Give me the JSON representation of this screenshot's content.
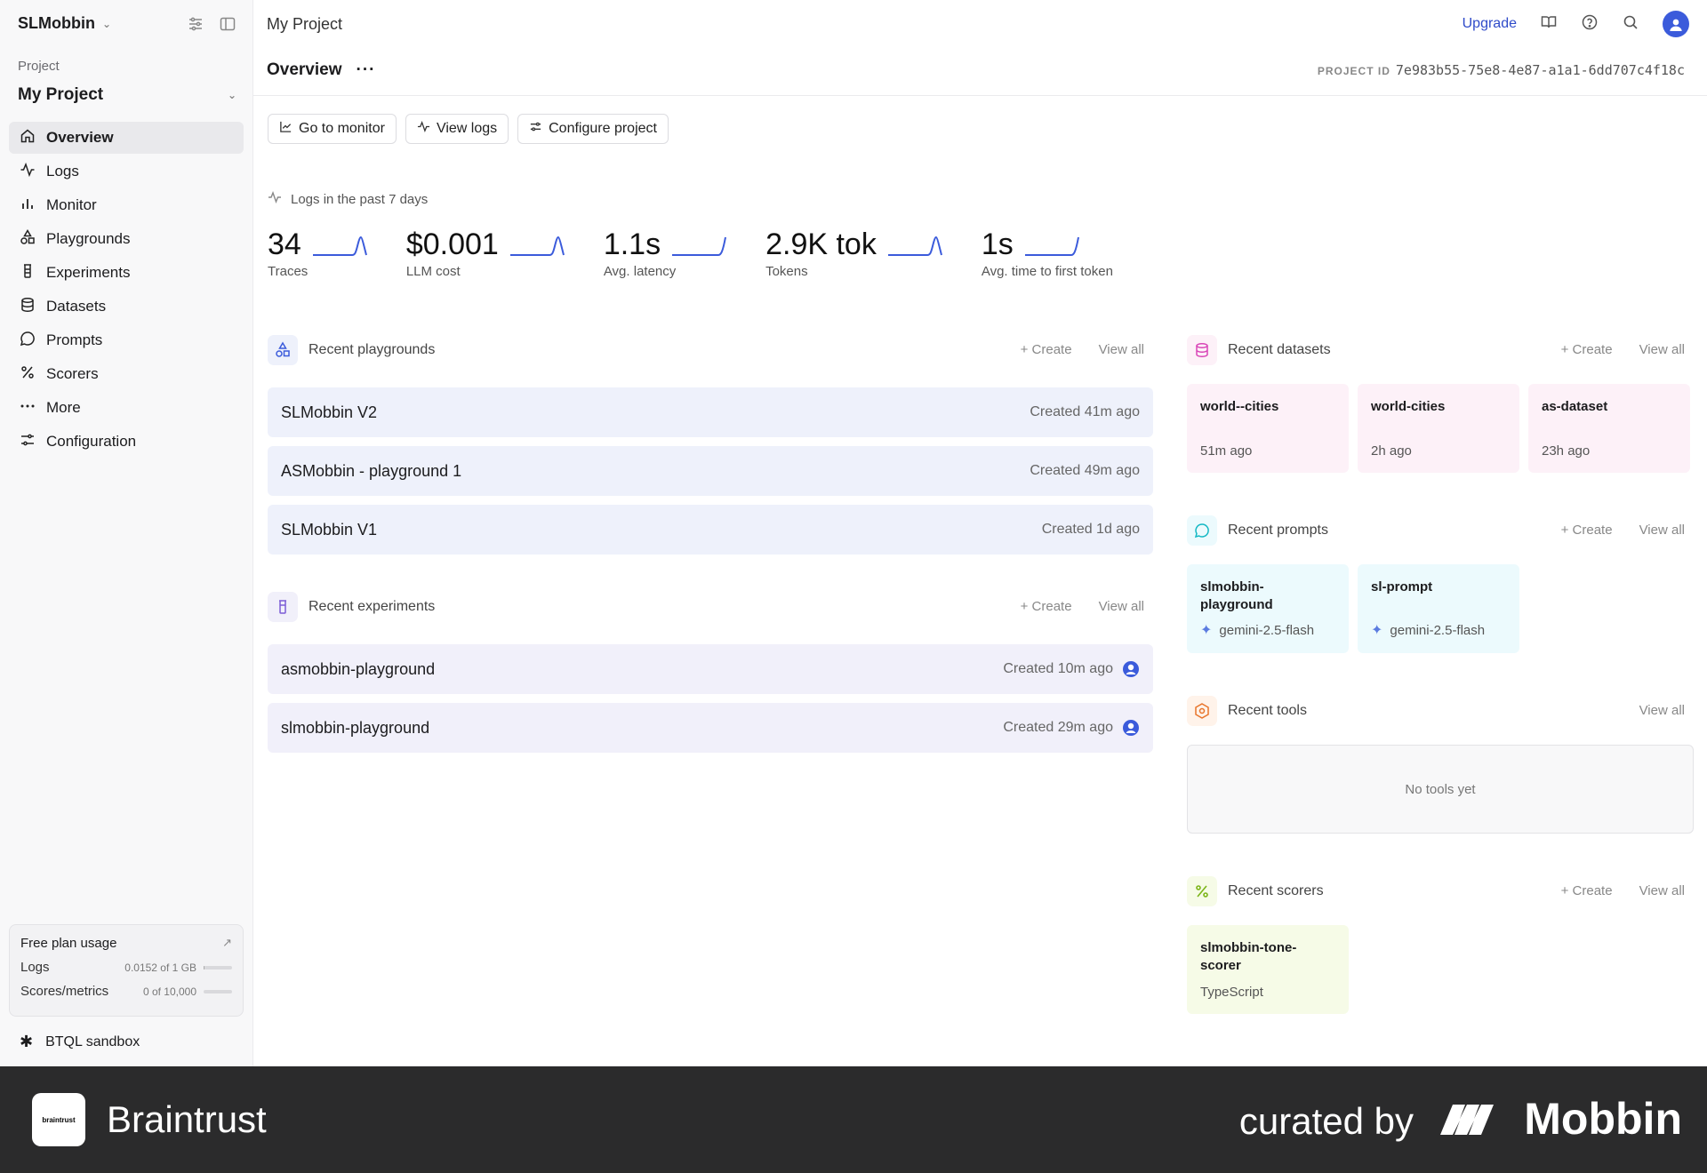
{
  "sidebar": {
    "org_name": "SLMobbin",
    "project_label": "Project",
    "project_name": "My Project",
    "nav": [
      {
        "label": "Overview",
        "icon": "home-icon",
        "active": true
      },
      {
        "label": "Logs",
        "icon": "activity-icon"
      },
      {
        "label": "Monitor",
        "icon": "bar-chart-icon"
      },
      {
        "label": "Playgrounds",
        "icon": "shapes-icon"
      },
      {
        "label": "Experiments",
        "icon": "beaker-icon"
      },
      {
        "label": "Datasets",
        "icon": "database-icon"
      },
      {
        "label": "Prompts",
        "icon": "message-icon"
      },
      {
        "label": "Scorers",
        "icon": "percent-icon"
      },
      {
        "label": "More",
        "icon": "ellipsis-icon"
      },
      {
        "label": "Configuration",
        "icon": "settings-icon"
      }
    ],
    "usage": {
      "title": "Free plan usage",
      "logs_label": "Logs",
      "logs_value": "0.0152 of 1 GB",
      "logs_fraction": 0.0152,
      "scores_label": "Scores/metrics",
      "scores_value": "0 of 10,000",
      "scores_fraction": 0
    },
    "btql_label": "BTQL sandbox"
  },
  "header": {
    "breadcrumb": "My Project",
    "upgrade_label": "Upgrade",
    "page_title": "Overview",
    "project_id_label": "PROJECT ID",
    "project_id": "7e983b55-75e8-4e87-a1a1-6dd707c4f18c"
  },
  "actions": {
    "monitor": "Go to monitor",
    "logs": "View logs",
    "configure": "Configure project"
  },
  "stats": {
    "heading": "Logs in the past 7 days",
    "items": [
      {
        "value": "34",
        "label": "Traces"
      },
      {
        "value": "$0.001",
        "label": "LLM cost"
      },
      {
        "value": "1.1s",
        "label": "Avg. latency"
      },
      {
        "value": "2.9K tok",
        "label": "Tokens"
      },
      {
        "value": "1s",
        "label": "Avg. time to first token"
      }
    ]
  },
  "common": {
    "create": "Create",
    "view_all": "View all"
  },
  "playgrounds": {
    "title": "Recent playgrounds",
    "items": [
      {
        "name": "SLMobbin V2",
        "meta": "Created 41m ago"
      },
      {
        "name": "ASMobbin - playground 1",
        "meta": "Created 49m ago"
      },
      {
        "name": "SLMobbin V1",
        "meta": "Created 1d ago"
      }
    ]
  },
  "experiments": {
    "title": "Recent experiments",
    "items": [
      {
        "name": "asmobbin-playground",
        "meta": "Created 10m ago"
      },
      {
        "name": "slmobbin-playground",
        "meta": "Created 29m ago"
      }
    ]
  },
  "datasets": {
    "title": "Recent datasets",
    "items": [
      {
        "name": "world--cities",
        "meta": "51m ago"
      },
      {
        "name": "world-cities",
        "meta": "2h ago"
      },
      {
        "name": "as-dataset",
        "meta": "23h ago"
      }
    ]
  },
  "prompts": {
    "title": "Recent prompts",
    "items": [
      {
        "name": "slmobbin-playground",
        "model": "gemini-2.5-flash"
      },
      {
        "name": "sl-prompt",
        "model": "gemini-2.5-flash"
      }
    ]
  },
  "tools": {
    "title": "Recent tools",
    "empty": "No tools yet"
  },
  "scorers": {
    "title": "Recent scorers",
    "items": [
      {
        "name": "slmobbin-tone-scorer",
        "meta": "TypeScript"
      }
    ]
  },
  "footer": {
    "brand": "Braintrust",
    "logo_text": "braintrust",
    "curated": "curated by",
    "mobbin": "Mobbin"
  },
  "colors": {
    "accent": "#2f4bc9",
    "spark": "#3b5bdb",
    "dataset": "#d946b8",
    "prompt": "#14b8c4",
    "tool": "#e8742a",
    "scorer": "#7cb518"
  }
}
